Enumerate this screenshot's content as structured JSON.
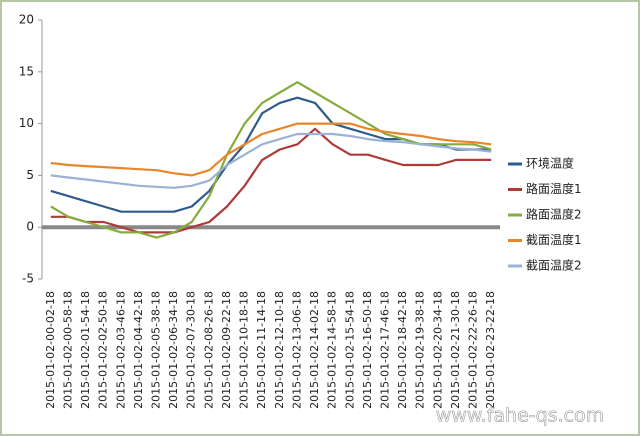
{
  "chart_data": {
    "type": "line",
    "categories": [
      "2015-01-02-00-02-18",
      "2015-01-02-00-58-18",
      "2015-01-02-01-54-18",
      "2015-01-02-02-50-18",
      "2015-01-02-03-46-18",
      "2015-01-02-04-42-18",
      "2015-01-02-05-38-18",
      "2015-01-02-06-34-18",
      "2015-01-02-07-30-18",
      "2015-01-02-08-26-18",
      "2015-01-02-09-22-18",
      "2015-01-02-10-18-18",
      "2015-01-02-11-14-18",
      "2015-01-02-12-10-18",
      "2015-01-02-13-06-18",
      "2015-01-02-14-02-18",
      "2015-01-02-14-58-18",
      "2015-01-02-15-54-18",
      "2015-01-02-16-50-18",
      "2015-01-02-17-46-18",
      "2015-01-02-18-42-18",
      "2015-01-02-19-38-18",
      "2015-01-02-20-34-18",
      "2015-01-02-21-30-18",
      "2015-01-02-22-26-18",
      "2015-01-02-23-22-18"
    ],
    "series": [
      {
        "name": "环境温度",
        "color": "#2e5b8c",
        "values": [
          3.5,
          3,
          2.5,
          2,
          1.5,
          1.5,
          1.5,
          1.5,
          2,
          3.5,
          6,
          8,
          11,
          12,
          12.5,
          12,
          10,
          9.5,
          9,
          8.5,
          8.5,
          8,
          8,
          7.5,
          7.5,
          7.5
        ]
      },
      {
        "name": "路面温度1",
        "color": "#b03a36",
        "values": [
          1,
          1,
          0.5,
          0.5,
          0,
          -0.5,
          -0.5,
          -0.5,
          0,
          0.5,
          2,
          4,
          6.5,
          7.5,
          8,
          9.5,
          8,
          7,
          7,
          6.5,
          6,
          6,
          6,
          6.5,
          6.5,
          6.5
        ]
      },
      {
        "name": "路面温度2",
        "color": "#86ac3e",
        "values": [
          2,
          1,
          0.5,
          0,
          -0.5,
          -0.5,
          -1,
          -0.5,
          0.5,
          3,
          7,
          10,
          12,
          13,
          14,
          13,
          12,
          11,
          10,
          9,
          8.5,
          8,
          8,
          8,
          8,
          7.5
        ]
      },
      {
        "name": "截面温度1",
        "color": "#e8862c",
        "values": [
          6.2,
          6,
          5.9,
          5.8,
          5.7,
          5.6,
          5.5,
          5.2,
          5,
          5.5,
          7,
          8,
          9,
          9.5,
          10,
          10,
          10,
          10,
          9.5,
          9.2,
          9,
          8.8,
          8.5,
          8.3,
          8.2,
          8
        ]
      },
      {
        "name": "截面温度2",
        "color": "#9bb2d6",
        "values": [
          5,
          4.8,
          4.6,
          4.4,
          4.2,
          4,
          3.9,
          3.8,
          4,
          4.5,
          6,
          7,
          8,
          8.5,
          9,
          9,
          9,
          8.8,
          8.5,
          8.3,
          8.2,
          8,
          7.8,
          7.6,
          7.5,
          7.3
        ]
      }
    ],
    "ylim": [
      -5,
      20
    ],
    "yticks": [
      -5,
      0,
      5,
      10,
      15,
      20
    ],
    "grid": false,
    "legend": "right",
    "watermark": "www.fahe-qs.com"
  }
}
